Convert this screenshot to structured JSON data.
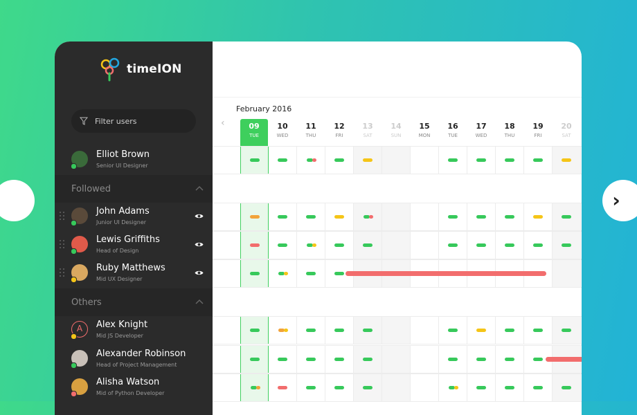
{
  "app": {
    "name": "timeION",
    "logo": "timeion-logo-icon"
  },
  "filter": {
    "placeholder": "Filter users",
    "icon": "filter-icon"
  },
  "current_user": {
    "name": "Elliot Brown",
    "role": "Senior UI Designer",
    "status": "#37c95b"
  },
  "sections": {
    "followed": "Followed",
    "others": "Others"
  },
  "followed": [
    {
      "name": "John Adams",
      "role": "Junior UI Designer",
      "status": "#37c95b"
    },
    {
      "name": "Lewis Griffiths",
      "role": "Head of Design",
      "status": "#37c95b"
    },
    {
      "name": "Ruby Matthews",
      "role": "Mid UX Designer",
      "status": "#f5c518"
    }
  ],
  "others": [
    {
      "name": "Alex Knight",
      "role": "Mid JS Developer",
      "status": "#f5c518",
      "initial": "A"
    },
    {
      "name": "Alexander Robinson",
      "role": "Head of Project Management",
      "status": "#37c95b"
    },
    {
      "name": "Alisha Watson",
      "role": "Mid of Python Developer",
      "status": "#f26d6d"
    }
  ],
  "calendar": {
    "month": "February 2016",
    "days": [
      {
        "num": "09",
        "dow": "TUE",
        "today": true
      },
      {
        "num": "10",
        "dow": "WED"
      },
      {
        "num": "11",
        "dow": "THU"
      },
      {
        "num": "12",
        "dow": "FRI"
      },
      {
        "num": "13",
        "dow": "SAT",
        "weekend": true
      },
      {
        "num": "14",
        "dow": "SUN",
        "weekend": true
      },
      {
        "num": "15",
        "dow": "MON"
      },
      {
        "num": "16",
        "dow": "TUE"
      },
      {
        "num": "17",
        "dow": "WED"
      },
      {
        "num": "18",
        "dow": "THU"
      },
      {
        "num": "19",
        "dow": "FRI"
      },
      {
        "num": "20",
        "dow": "SAT",
        "weekend": true
      }
    ]
  },
  "colors": {
    "accent": "#3ecf5d",
    "green": "#37c95b",
    "yellow": "#f5c518",
    "orange": "#f2a33a",
    "red": "#f26d6d",
    "sidebar": "#2b2b2b"
  }
}
